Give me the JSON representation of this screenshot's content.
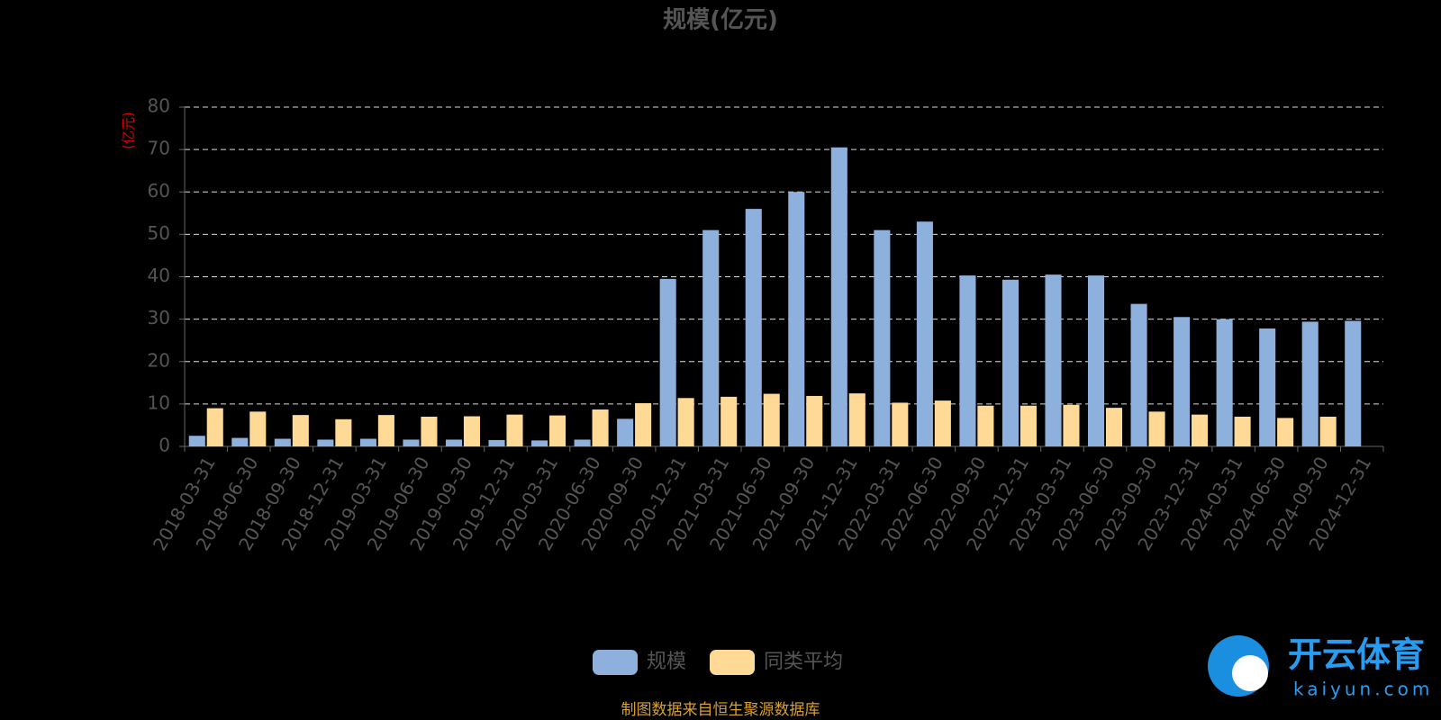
{
  "chart_data": {
    "type": "bar",
    "title": "规模(亿元)",
    "y_axis_label": "(亿元)",
    "categories": [
      "2018-03-31",
      "2018-06-30",
      "2018-09-30",
      "2018-12-31",
      "2019-03-31",
      "2019-06-30",
      "2019-09-30",
      "2019-12-31",
      "2020-03-31",
      "2020-06-30",
      "2020-09-30",
      "2020-12-31",
      "2021-03-31",
      "2021-06-30",
      "2021-09-30",
      "2021-12-31",
      "2022-03-31",
      "2022-06-30",
      "2022-09-30",
      "2022-12-31",
      "2023-03-31",
      "2023-06-30",
      "2023-09-30",
      "2023-12-31",
      "2024-03-31",
      "2024-06-30",
      "2024-09-30",
      "2024-12-31"
    ],
    "series": [
      {
        "name": "规模",
        "color": "#8eb0dc",
        "values": [
          2.5,
          2.0,
          1.8,
          1.6,
          1.8,
          1.6,
          1.6,
          1.5,
          1.4,
          1.6,
          6.5,
          39.5,
          51,
          56,
          60,
          70.5,
          51,
          53,
          40.3,
          39.3,
          40.5,
          40.3,
          33.6,
          30.5,
          30,
          27.8,
          29.4,
          29.6
        ]
      },
      {
        "name": "同类平均",
        "color": "#ffd996",
        "values": [
          9,
          8.2,
          7.4,
          6.4,
          7.4,
          7,
          7.1,
          7.5,
          7.3,
          8.7,
          10.2,
          11.4,
          11.7,
          12.4,
          11.9,
          12.5,
          10.3,
          10.8,
          9.6,
          9.6,
          9.8,
          9.1,
          8.2,
          7.5,
          7,
          6.7,
          7,
          null
        ]
      }
    ],
    "ylim": [
      0,
      80
    ],
    "yticks": [
      0,
      10,
      20,
      30,
      40,
      50,
      60,
      70,
      80
    ],
    "grid": true,
    "source_note": "制图数据来自恒生聚源数据库",
    "watermark": {
      "brand": "开云体育",
      "site": "kaiyun.com"
    }
  }
}
